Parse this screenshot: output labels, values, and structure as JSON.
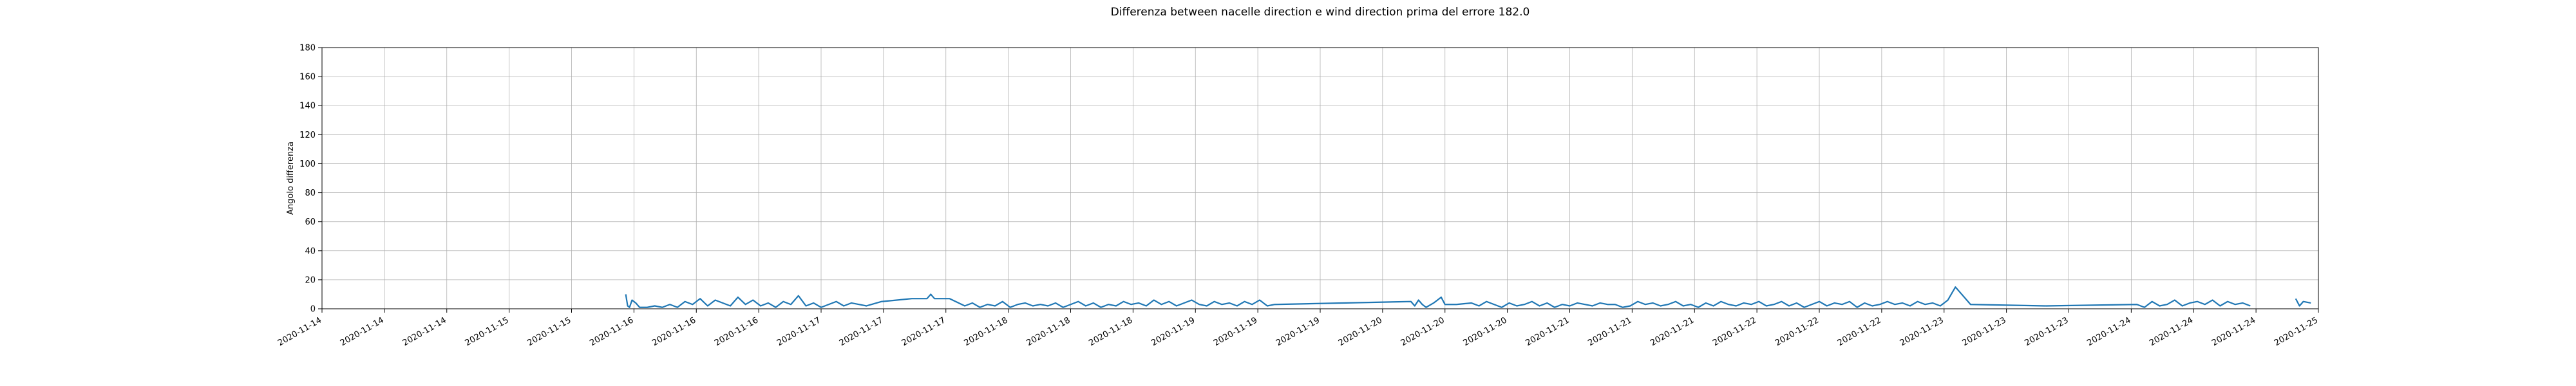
{
  "chart_data": {
    "type": "line",
    "title": "Differenza between nacelle direction e wind direction prima del errore 182.0",
    "xlabel": "",
    "ylabel": "Angolo differenza",
    "ylim": [
      0,
      180
    ],
    "yticks": [
      0,
      20,
      40,
      60,
      80,
      100,
      120,
      140,
      160,
      180
    ],
    "xlim": [
      "2020-11-14 00:00",
      "2020-11-25 00:00"
    ],
    "xtick_labels": [
      "2020-11-14",
      "2020-11-14",
      "2020-11-14",
      "2020-11-15",
      "2020-11-15",
      "2020-11-16",
      "2020-11-16",
      "2020-11-16",
      "2020-11-17",
      "2020-11-17",
      "2020-11-17",
      "2020-11-18",
      "2020-11-18",
      "2020-11-18",
      "2020-11-19",
      "2020-11-19",
      "2020-11-19",
      "2020-11-20",
      "2020-11-20",
      "2020-11-20",
      "2020-11-21",
      "2020-11-21",
      "2020-11-21",
      "2020-11-22",
      "2020-11-22",
      "2020-11-22",
      "2020-11-23",
      "2020-11-23",
      "2020-11-23",
      "2020-11-24",
      "2020-11-24",
      "2020-11-24",
      "2020-11-25"
    ],
    "grid": true,
    "line_color": "#1f77b4",
    "series": [
      {
        "x": [
          "2020-11-15 16:10",
          "2020-11-15 16:25",
          "2020-11-15 16:40",
          "2020-11-15 17:00",
          "2020-11-15 17:30",
          "2020-11-15 18:00",
          "2020-11-15 19:00",
          "2020-11-15 20:00",
          "2020-11-15 21:00",
          "2020-11-15 22:00",
          "2020-11-15 23:00",
          "2020-11-16 00:00",
          "2020-11-16 01:00",
          "2020-11-16 02:00",
          "2020-11-16 03:00",
          "2020-11-16 04:00",
          "2020-11-16 05:00",
          "2020-11-16 06:00",
          "2020-11-16 07:00",
          "2020-11-16 08:00",
          "2020-11-16 09:00",
          "2020-11-16 10:00",
          "2020-11-16 11:00",
          "2020-11-16 12:00",
          "2020-11-16 13:00",
          "2020-11-16 14:00",
          "2020-11-16 15:00",
          "2020-11-16 16:00",
          "2020-11-16 17:00",
          "2020-11-16 18:00",
          "2020-11-16 19:00",
          "2020-11-16 20:00",
          "2020-11-16 21:00",
          "2020-11-16 22:00",
          "2020-11-16 23:00",
          "2020-11-17 00:00",
          "2020-11-17 02:00",
          "2020-11-17 04:00",
          "2020-11-17 06:00",
          "2020-11-17 08:00",
          "2020-11-17 08:30",
          "2020-11-17 09:00",
          "2020-11-17 11:00",
          "2020-11-17 13:00",
          "2020-11-17 14:00",
          "2020-11-17 15:00",
          "2020-11-17 16:00",
          "2020-11-17 17:00",
          "2020-11-17 18:00",
          "2020-11-17 19:00",
          "2020-11-17 20:00",
          "2020-11-17 21:00",
          "2020-11-17 22:00",
          "2020-11-17 23:00",
          "2020-11-18 00:00",
          "2020-11-18 01:00",
          "2020-11-18 02:00",
          "2020-11-18 03:00",
          "2020-11-18 04:00",
          "2020-11-18 05:00",
          "2020-11-18 06:00",
          "2020-11-18 07:00",
          "2020-11-18 08:00",
          "2020-11-18 09:00",
          "2020-11-18 10:00",
          "2020-11-18 11:00",
          "2020-11-18 12:00",
          "2020-11-18 13:00",
          "2020-11-18 14:00",
          "2020-11-18 15:00",
          "2020-11-18 16:00",
          "2020-11-18 17:00",
          "2020-11-18 18:00",
          "2020-11-18 19:00",
          "2020-11-18 20:00",
          "2020-11-18 21:00",
          "2020-11-18 22:00",
          "2020-11-18 23:00",
          "2020-11-19 00:00",
          "2020-11-19 01:00",
          "2020-11-19 02:00",
          "2020-11-19 03:00",
          "2020-11-19 04:00",
          "2020-11-19 05:00",
          "2020-11-19 06:00",
          "2020-11-20 00:00",
          "2020-11-20 00:30",
          "2020-11-20 01:00",
          "2020-11-20 01:30",
          "2020-11-20 02:00",
          "2020-11-20 03:00",
          "2020-11-20 04:00",
          "2020-11-20 04:30",
          "2020-11-20 06:00",
          "2020-11-20 08:00",
          "2020-11-20 09:00",
          "2020-11-20 10:00",
          "2020-11-20 11:00",
          "2020-11-20 12:00",
          "2020-11-20 13:00",
          "2020-11-20 14:00",
          "2020-11-20 15:00",
          "2020-11-20 16:00",
          "2020-11-20 17:00",
          "2020-11-20 18:00",
          "2020-11-20 19:00",
          "2020-11-20 20:00",
          "2020-11-20 21:00",
          "2020-11-20 22:00",
          "2020-11-20 23:00",
          "2020-11-21 00:00",
          "2020-11-21 01:00",
          "2020-11-21 02:00",
          "2020-11-21 03:00",
          "2020-11-21 04:00",
          "2020-11-21 05:00",
          "2020-11-21 06:00",
          "2020-11-21 07:00",
          "2020-11-21 08:00",
          "2020-11-21 09:00",
          "2020-11-21 10:00",
          "2020-11-21 11:00",
          "2020-11-21 12:00",
          "2020-11-21 13:00",
          "2020-11-21 14:00",
          "2020-11-21 15:00",
          "2020-11-21 16:00",
          "2020-11-21 17:00",
          "2020-11-21 18:00",
          "2020-11-21 19:00",
          "2020-11-21 20:00",
          "2020-11-21 21:00",
          "2020-11-21 22:00",
          "2020-11-21 23:00",
          "2020-11-22 00:00",
          "2020-11-22 01:00",
          "2020-11-22 02:00",
          "2020-11-22 03:00",
          "2020-11-22 04:00",
          "2020-11-22 05:00",
          "2020-11-22 06:00",
          "2020-11-22 07:00",
          "2020-11-22 08:00",
          "2020-11-22 09:00",
          "2020-11-22 10:00",
          "2020-11-22 11:00",
          "2020-11-22 12:00",
          "2020-11-22 13:00",
          "2020-11-22 14:00",
          "2020-11-22 15:00",
          "2020-11-22 16:00",
          "2020-11-22 17:00",
          "2020-11-22 18:00",
          "2020-11-22 19:00",
          "2020-11-22 20:00",
          "2020-11-22 21:00",
          "2020-11-22 22:00",
          "2020-11-22 23:00",
          "2020-11-23 00:00",
          "2020-11-23 02:00",
          "2020-11-23 12:00",
          "2020-11-24 00:00",
          "2020-11-24 01:00",
          "2020-11-24 02:00",
          "2020-11-24 03:00",
          "2020-11-24 04:00",
          "2020-11-24 05:00",
          "2020-11-24 06:00",
          "2020-11-24 07:00",
          "2020-11-24 08:00",
          "2020-11-24 09:00",
          "2020-11-24 10:00",
          "2020-11-24 11:00",
          "2020-11-24 12:00",
          "2020-11-24 13:00",
          "2020-11-24 14:00",
          "2020-11-24 15:00",
          null,
          "2020-11-24 21:00",
          "2020-11-24 21:30",
          "2020-11-24 22:00",
          "2020-11-24 23:00"
        ],
        "y": [
          10,
          2,
          1,
          6,
          4,
          1,
          1,
          2,
          1,
          3,
          1,
          5,
          3,
          7,
          2,
          6,
          4,
          2,
          8,
          3,
          6,
          2,
          4,
          1,
          5,
          3,
          9,
          2,
          4,
          1,
          3,
          5,
          2,
          4,
          3,
          2,
          5,
          6,
          7,
          7,
          10,
          7,
          7,
          2,
          4,
          1,
          3,
          2,
          5,
          1,
          3,
          4,
          2,
          3,
          2,
          4,
          1,
          3,
          5,
          2,
          4,
          1,
          3,
          2,
          5,
          3,
          4,
          2,
          6,
          3,
          5,
          2,
          4,
          6,
          3,
          2,
          5,
          3,
          4,
          2,
          5,
          3,
          6,
          2,
          3,
          5,
          2,
          6,
          3,
          1,
          4,
          8,
          3,
          3,
          4,
          2,
          5,
          3,
          1,
          4,
          2,
          3,
          5,
          2,
          4,
          1,
          3,
          2,
          4,
          3,
          2,
          4,
          3,
          3,
          1,
          2,
          5,
          3,
          4,
          2,
          3,
          5,
          2,
          3,
          1,
          4,
          2,
          5,
          3,
          2,
          4,
          3,
          5,
          2,
          3,
          5,
          2,
          4,
          1,
          3,
          5,
          2,
          4,
          3,
          5,
          1,
          4,
          2,
          3,
          5,
          3,
          4,
          2,
          5,
          3,
          4,
          2,
          6,
          15,
          3,
          2,
          3,
          1,
          5,
          2,
          3,
          6,
          2,
          4,
          5,
          3,
          6,
          2,
          5,
          3,
          4,
          2,
          null,
          7,
          2,
          5,
          4
        ]
      }
    ]
  }
}
